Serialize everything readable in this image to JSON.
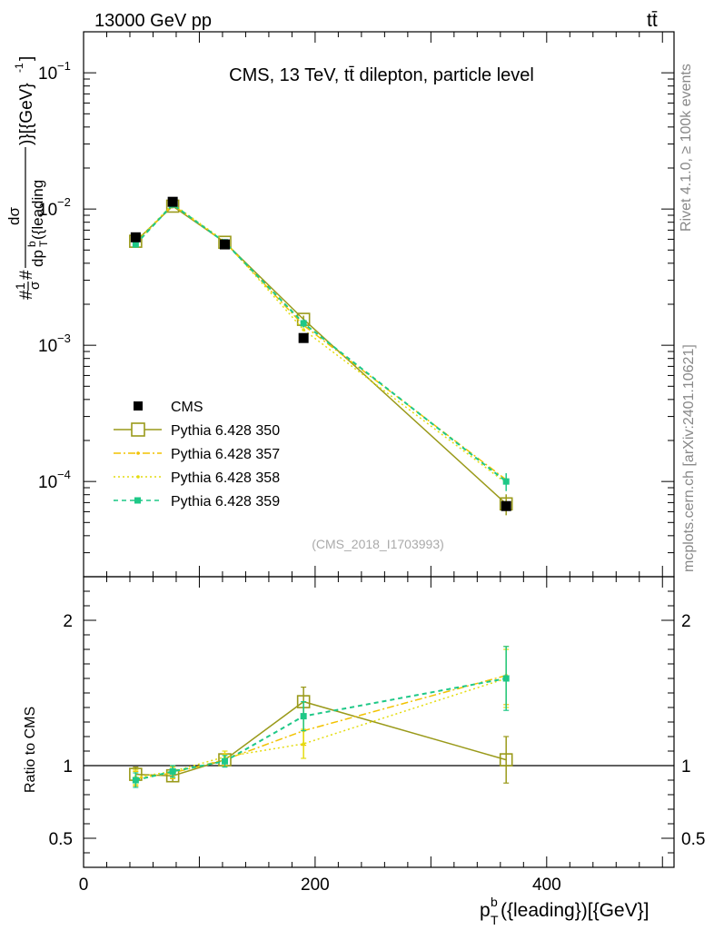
{
  "header": {
    "energy_label": "13000 GeV pp",
    "process_label": "tt̄"
  },
  "side_labels": {
    "rivet": "Rivet 4.1.0, ≥ 100k events",
    "mcplots": "mcplots.cern.ch [arXiv:2401.10621]"
  },
  "chart_data": [
    {
      "type": "line",
      "title": "CMS, 13 TeV, tt̄ dilepton, particle level",
      "watermark": "(CMS_2018_I1703993)",
      "xlabel": "p_T^b({leading})[{GeV}]",
      "ylabel": "#1/σ# dσ/dp_T^b({leading})[{GeV}^-1]",
      "yscale": "log",
      "xlim": [
        0,
        510
      ],
      "ylim": [
        2e-05,
        0.2
      ],
      "y_tick_labels": [
        "10^-4",
        "10^-3",
        "10^-2",
        "10^-1"
      ],
      "legend_position": "middle-left",
      "x": [
        45,
        77,
        122,
        190,
        365
      ],
      "series": [
        {
          "name": "CMS",
          "color": "#000000",
          "style": "marker-square",
          "values": [
            0.0062,
            0.0113,
            0.0055,
            0.00113,
            6.6e-05
          ]
        },
        {
          "name": "Pythia 6.428 350",
          "color": "#9a9a1a",
          "style": "solid-open-square",
          "values": [
            0.0058,
            0.0105,
            0.0057,
            0.00155,
            6.85e-05
          ],
          "errors": [
            0.0003,
            0.0004,
            0.0003,
            0.0001,
            1.2e-05
          ]
        },
        {
          "name": "Pythia 6.428 357",
          "color": "#f2c200",
          "style": "dashdot",
          "values": [
            0.0056,
            0.0107,
            0.0057,
            0.0014,
            0.000103
          ]
        },
        {
          "name": "Pythia 6.428 358",
          "color": "#e4dc10",
          "style": "dotted",
          "values": [
            0.0057,
            0.0109,
            0.0058,
            0.0013,
            9.75e-05
          ]
        },
        {
          "name": "Pythia 6.428 359",
          "color": "#1ec887",
          "style": "dashed-filled-square",
          "values": [
            0.0055,
            0.0108,
            0.0057,
            0.00145,
            0.0001
          ],
          "errors": [
            0.0003,
            0.0004,
            0.0003,
            0.0001,
            1.5e-05
          ]
        }
      ]
    },
    {
      "type": "line",
      "title": "",
      "ylabel": "Ratio to CMS",
      "xlabel": "p_T^b({leading})[{GeV}]",
      "xlim": [
        0,
        510
      ],
      "ylim": [
        0.3,
        2.3
      ],
      "y_tick_labels": [
        "0.5",
        "1",
        "2"
      ],
      "x_tick_labels": [
        "0",
        "200",
        "400"
      ],
      "reference_line": 1,
      "x": [
        45,
        77,
        122,
        190,
        365
      ],
      "series": [
        {
          "name": "Pythia 6.428 350",
          "values": [
            0.94,
            0.93,
            1.04,
            1.44,
            1.04
          ],
          "errors": [
            0.05,
            0.04,
            0.04,
            0.1,
            0.16
          ]
        },
        {
          "name": "Pythia 6.428 357",
          "values": [
            0.91,
            0.95,
            1.04,
            1.24,
            1.62
          ],
          "errors": [
            0.05,
            0.04,
            0.04,
            0.1,
            0.2
          ]
        },
        {
          "name": "Pythia 6.428 358",
          "values": [
            0.92,
            0.96,
            1.06,
            1.15,
            1.6
          ],
          "errors": [
            0.05,
            0.04,
            0.04,
            0.1,
            0.2
          ]
        },
        {
          "name": "Pythia 6.428 359",
          "values": [
            0.9,
            0.96,
            1.03,
            1.34,
            1.6
          ],
          "errors": [
            0.05,
            0.04,
            0.04,
            0.1,
            0.22
          ]
        }
      ]
    }
  ]
}
